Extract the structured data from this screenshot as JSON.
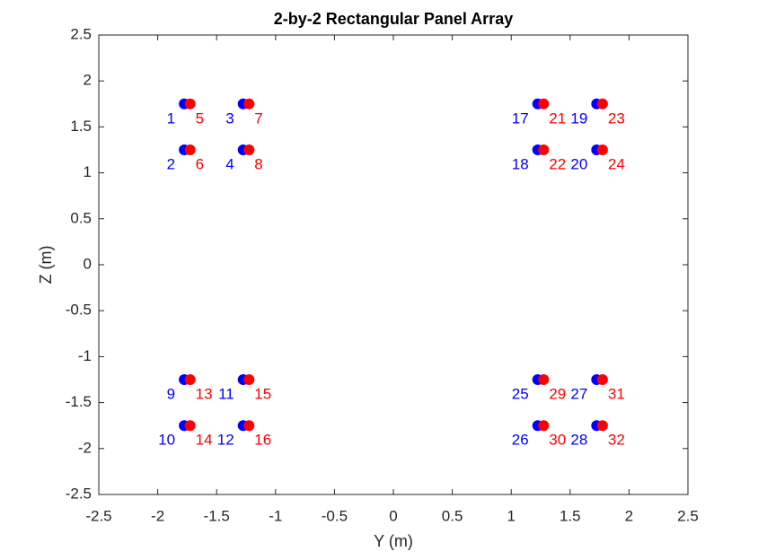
{
  "chart_data": {
    "type": "scatter",
    "title": "2-by-2 Rectangular Panel Array",
    "x_label": "Y (m)",
    "y_label": "Z (m)",
    "xlim": [
      -2.5,
      2.5
    ],
    "xticks": [
      -2.5,
      -2,
      -1.5,
      -1,
      -0.5,
      0,
      0.5,
      1,
      1.5,
      2,
      2.5
    ],
    "ylim": [
      -2.5,
      2.5
    ],
    "yticks": [
      -2.5,
      -2,
      -1.5,
      -1,
      -0.5,
      0,
      0.5,
      1,
      1.5,
      2,
      2.5
    ],
    "series": [
      {
        "color": "#0000ff",
        "label_side": "left",
        "x": [
          -1.775,
          -1.775,
          -1.275,
          -1.275,
          -1.775,
          -1.775,
          -1.275,
          -1.275,
          1.225,
          1.225,
          1.725,
          1.725,
          1.225,
          1.225,
          1.725,
          1.725
        ],
        "values": [
          1.75,
          1.25,
          1.75,
          1.25,
          -1.25,
          -1.75,
          -1.25,
          -1.75,
          1.75,
          1.25,
          1.75,
          1.25,
          -1.25,
          -1.75,
          -1.25,
          -1.75
        ],
        "point_labels": [
          "1",
          "2",
          "3",
          "4",
          "9",
          "10",
          "11",
          "12",
          "17",
          "18",
          "19",
          "20",
          "25",
          "26",
          "27",
          "28"
        ]
      },
      {
        "color": "#ff0000",
        "label_side": "right",
        "x": [
          -1.725,
          -1.725,
          -1.225,
          -1.225,
          -1.725,
          -1.725,
          -1.225,
          -1.225,
          1.275,
          1.275,
          1.775,
          1.775,
          1.275,
          1.275,
          1.775,
          1.775
        ],
        "values": [
          1.75,
          1.25,
          1.75,
          1.25,
          -1.25,
          -1.75,
          -1.25,
          -1.75,
          1.75,
          1.25,
          1.75,
          1.25,
          -1.25,
          -1.75,
          -1.25,
          -1.75
        ],
        "point_labels": [
          "5",
          "6",
          "7",
          "8",
          "13",
          "14",
          "15",
          "16",
          "21",
          "22",
          "23",
          "24",
          "29",
          "30",
          "31",
          "32"
        ]
      }
    ]
  }
}
